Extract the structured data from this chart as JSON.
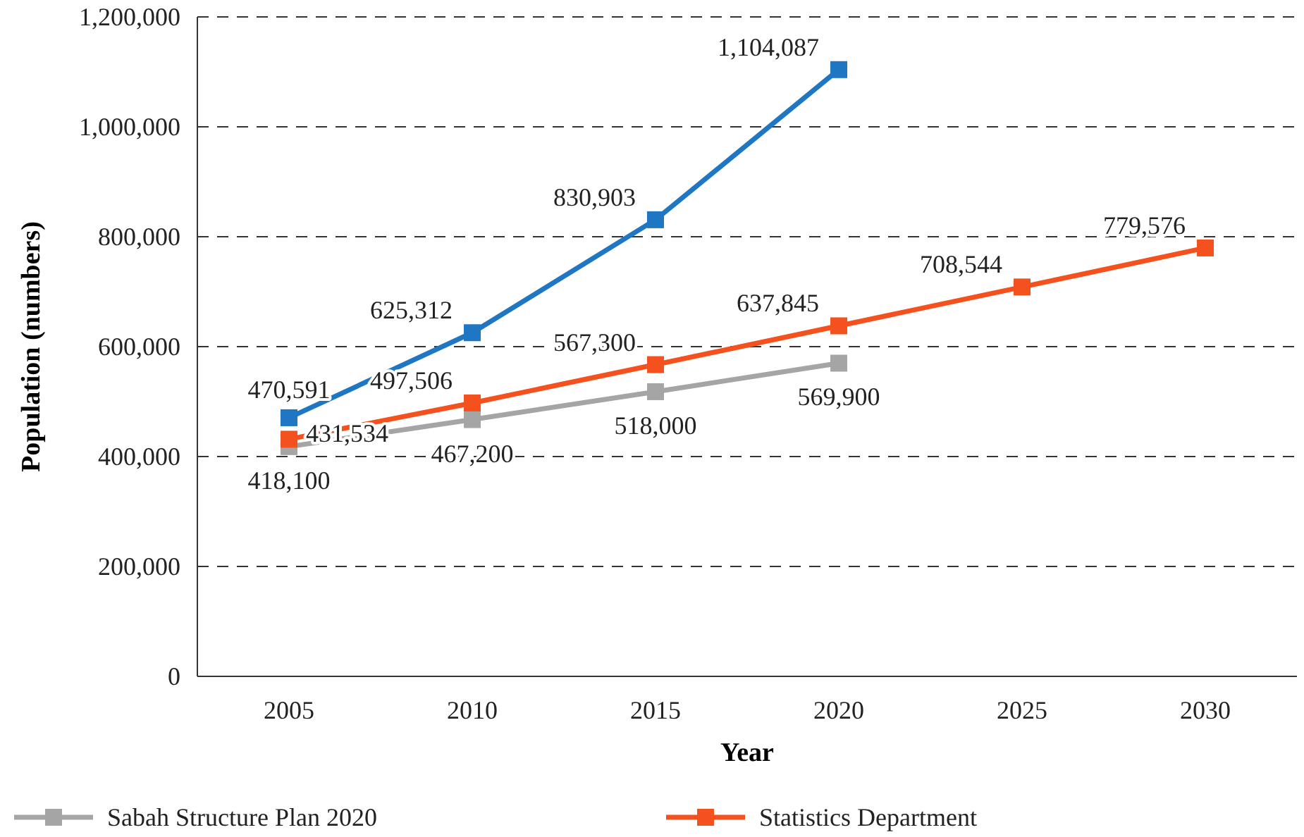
{
  "chart_data": {
    "type": "line",
    "xlabel": "Year",
    "ylabel": "Population (numbers)",
    "categories": [
      "2005",
      "2010",
      "2015",
      "2020",
      "2025",
      "2030"
    ],
    "series": [
      {
        "name": "Sabah Structure Plan 2020",
        "color": "#a5a5a5",
        "values": [
          418100,
          467200,
          518000,
          569900,
          null,
          null
        ],
        "value_labels": [
          "418,100",
          "467,200",
          "518,000",
          "569,900",
          null,
          null
        ]
      },
      {
        "name": "Statistics Department",
        "color": "#f4511e",
        "values": [
          431534,
          497506,
          567300,
          637845,
          708544,
          779576
        ],
        "value_labels": [
          "431,534",
          "497,506",
          "567,300",
          "637,845",
          "708,544",
          "779,576"
        ]
      },
      {
        "color": "#1f77c4",
        "values": [
          470591,
          625312,
          830903,
          1104087,
          null,
          null
        ],
        "value_labels": [
          "470,591",
          "625,312",
          "830,903",
          "1,104,087",
          null,
          null
        ]
      }
    ],
    "ylim": [
      0,
      1200000
    ],
    "yticks": [
      0,
      {
        "value": 200000,
        "label": "200,000"
      },
      {
        "value": 400000,
        "label": "400,000"
      },
      {
        "value": 600000,
        "label": "600,000"
      },
      {
        "value": 800000,
        "label": "800,000"
      },
      {
        "value": 1000000,
        "label": "1,000,000"
      },
      {
        "value": 1200000,
        "label": "1,200,000"
      }
    ],
    "grid": "y",
    "legend": "bottom",
    "marker": "square",
    "line_style": "solid"
  }
}
